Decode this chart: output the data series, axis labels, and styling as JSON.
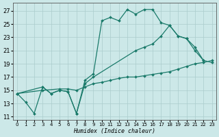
{
  "background_color": "#cce8e8",
  "grid_color": "#aacccc",
  "line_color": "#1a7a6a",
  "xlabel": "Humidex (Indice chaleur)",
  "xlim": [
    -0.5,
    23.5
  ],
  "ylim": [
    10.5,
    28.2
  ],
  "xticks": [
    0,
    1,
    2,
    3,
    4,
    5,
    6,
    7,
    8,
    9,
    10,
    11,
    12,
    13,
    14,
    15,
    16,
    17,
    18,
    19,
    20,
    21,
    22,
    23
  ],
  "yticks": [
    11,
    13,
    15,
    17,
    19,
    21,
    23,
    25,
    27
  ],
  "s1_x": [
    0,
    1,
    2,
    3,
    4,
    5,
    6,
    7,
    8,
    9,
    10,
    11,
    12,
    13,
    14,
    15,
    16,
    17,
    18,
    19,
    20,
    21,
    22
  ],
  "s1_y": [
    14.5,
    13.2,
    11.5,
    15.5,
    14.5,
    15.0,
    14.8,
    11.5,
    16.5,
    17.5,
    25.5,
    26.0,
    25.5,
    27.2,
    26.5,
    27.2,
    27.2,
    25.2,
    24.8,
    23.2,
    22.8,
    21.5,
    19.5
  ],
  "s2_x": [
    0,
    3,
    4,
    5,
    6,
    7,
    8,
    9,
    14,
    15,
    16,
    17,
    18,
    19,
    20,
    21,
    22,
    23
  ],
  "s2_y": [
    14.5,
    15.5,
    14.5,
    15.0,
    14.8,
    11.5,
    16.0,
    17.0,
    21.0,
    21.5,
    22.0,
    23.2,
    24.8,
    23.2,
    22.8,
    21.0,
    19.5,
    19.2
  ],
  "s3_x": [
    0,
    3,
    5,
    6,
    7,
    8,
    9,
    10,
    11,
    12,
    13,
    14,
    15,
    16,
    17,
    18,
    19,
    20,
    21,
    22,
    23
  ],
  "s3_y": [
    14.5,
    15.0,
    15.2,
    15.2,
    15.0,
    15.5,
    16.0,
    16.2,
    16.5,
    16.8,
    17.0,
    17.0,
    17.2,
    17.4,
    17.6,
    17.8,
    18.2,
    18.6,
    19.0,
    19.2,
    19.5
  ]
}
